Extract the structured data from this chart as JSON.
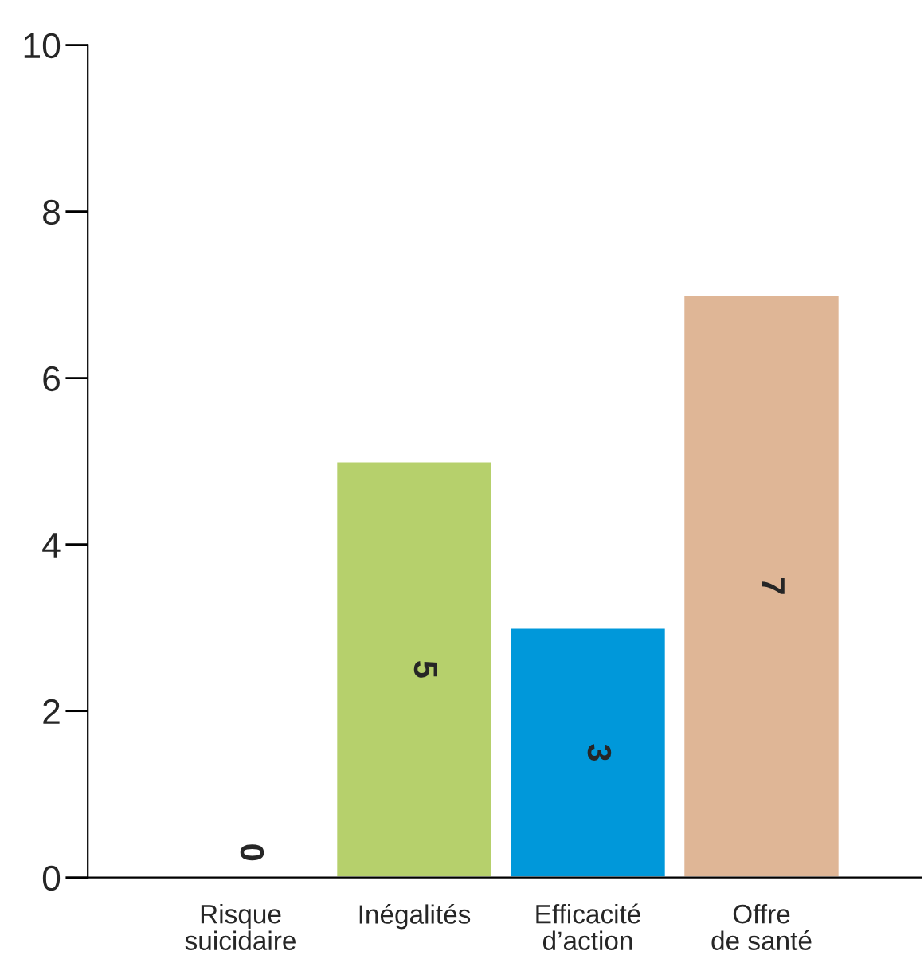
{
  "chart_data": {
    "type": "bar",
    "categories": [
      "Risque\nsuicidaire",
      "Inégalités",
      "Efficacité\nd’action",
      "Offre\nde santé"
    ],
    "values": [
      0,
      5,
      3,
      7
    ],
    "colors": [
      "#ffffff",
      "#b6d06c",
      "#0098da",
      "#dfb696"
    ],
    "ylim": [
      0,
      10
    ],
    "yticks": [
      0,
      2,
      4,
      6,
      8,
      10
    ],
    "grid": false,
    "data_labels": true
  }
}
